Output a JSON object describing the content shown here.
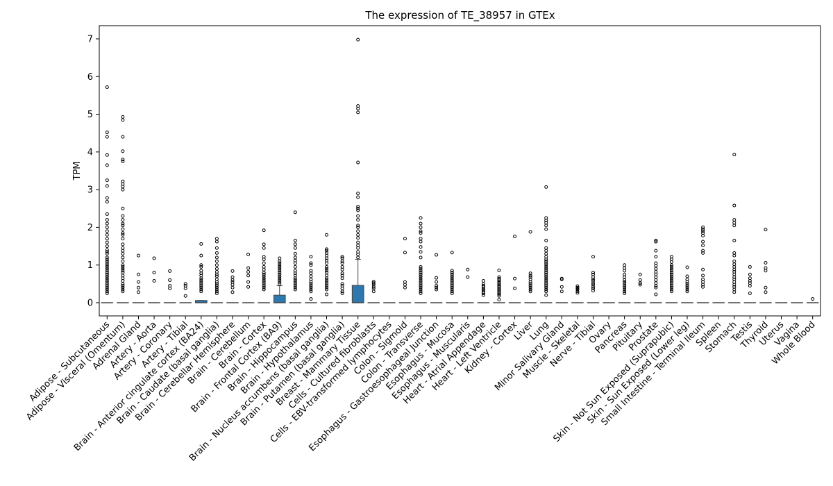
{
  "chart_data": {
    "type": "box",
    "title": "The expression of TE_38957 in GTEx",
    "xlabel": "",
    "ylabel": "TPM",
    "ylim": [
      -0.35,
      7.35
    ],
    "yticks": [
      0,
      1,
      2,
      3,
      4,
      5,
      6,
      7
    ],
    "box_color": "#2e78b0",
    "categories": [
      "Adipose - Subcutaneous",
      "Adipose - Visceral (Omentum)",
      "Adrenal Gland",
      "Artery - Aorta",
      "Artery - Coronary",
      "Artery - Tibial",
      "Brain - Anterior cingulate cortex (BA24)",
      "Brain - Caudate (basal ganglia)",
      "Brain - Cerebellar Hemisphere",
      "Brain - Cerebellum",
      "Brain - Cortex",
      "Brain - Frontal Cortex (BA9)",
      "Brain - Hippocampus",
      "Brain - Hypothalamus",
      "Brain - Nucleus accumbens (basal ganglia)",
      "Brain - Putamen (basal ganglia)",
      "Breast - Mammary Tissue",
      "Cells - Cultured fibroblasts",
      "Cells - EBV-transformed lymphocytes",
      "Colon - Sigmoid",
      "Colon - Transverse",
      "Esophagus - Gastroesophageal Junction",
      "Esophagus - Mucosa",
      "Esophagus - Muscularis",
      "Heart - Atrial Appendage",
      "Heart - Left Ventricle",
      "Kidney - Cortex",
      "Liver",
      "Lung",
      "Minor Salivary Gland",
      "Muscle - Skeletal",
      "Nerve - Tibial",
      "Ovary",
      "Pancreas",
      "Pituitary",
      "Prostate",
      "Skin - Not Sun Exposed (Suprapubic)",
      "Skin - Sun Exposed (Lower leg)",
      "Small Intestine - Terminal Ileum",
      "Spleen",
      "Stomach",
      "Testis",
      "Thyroid",
      "Uterus",
      "Vagina",
      "Whole Blood"
    ],
    "boxes": [
      {
        "q1": 0,
        "median": 0,
        "q3": 0,
        "whisker_low": 0,
        "whisker_high": 0
      },
      {
        "q1": 0,
        "median": 0,
        "q3": 0,
        "whisker_low": 0,
        "whisker_high": 0
      },
      {
        "q1": 0,
        "median": 0,
        "q3": 0,
        "whisker_low": 0,
        "whisker_high": 0
      },
      {
        "q1": 0,
        "median": 0,
        "q3": 0,
        "whisker_low": 0,
        "whisker_high": 0
      },
      {
        "q1": 0,
        "median": 0,
        "q3": 0,
        "whisker_low": 0,
        "whisker_high": 0
      },
      {
        "q1": 0,
        "median": 0,
        "q3": 0,
        "whisker_low": 0,
        "whisker_high": 0
      },
      {
        "q1": 0,
        "median": 0,
        "q3": 0.06,
        "whisker_low": 0,
        "whisker_high": 0.06
      },
      {
        "q1": 0,
        "median": 0,
        "q3": 0,
        "whisker_low": 0,
        "whisker_high": 0
      },
      {
        "q1": 0,
        "median": 0,
        "q3": 0,
        "whisker_low": 0,
        "whisker_high": 0
      },
      {
        "q1": 0,
        "median": 0,
        "q3": 0,
        "whisker_low": 0,
        "whisker_high": 0
      },
      {
        "q1": 0,
        "median": 0,
        "q3": 0,
        "whisker_low": 0,
        "whisker_high": 0
      },
      {
        "q1": 0,
        "median": 0,
        "q3": 0.2,
        "whisker_low": 0,
        "whisker_high": 0.45
      },
      {
        "q1": 0,
        "median": 0,
        "q3": 0,
        "whisker_low": 0,
        "whisker_high": 0
      },
      {
        "q1": 0,
        "median": 0,
        "q3": 0,
        "whisker_low": 0,
        "whisker_high": 0
      },
      {
        "q1": 0,
        "median": 0,
        "q3": 0,
        "whisker_low": 0,
        "whisker_high": 0
      },
      {
        "q1": 0,
        "median": 0,
        "q3": 0,
        "whisker_low": 0,
        "whisker_high": 0
      },
      {
        "q1": 0,
        "median": 0,
        "q3": 0.46,
        "whisker_low": 0,
        "whisker_high": 1.15
      },
      {
        "q1": 0,
        "median": 0,
        "q3": 0,
        "whisker_low": 0,
        "whisker_high": 0
      },
      {
        "q1": 0,
        "median": 0,
        "q3": 0,
        "whisker_low": 0,
        "whisker_high": 0
      },
      {
        "q1": 0,
        "median": 0,
        "q3": 0,
        "whisker_low": 0,
        "whisker_high": 0
      },
      {
        "q1": 0,
        "median": 0,
        "q3": 0,
        "whisker_low": 0,
        "whisker_high": 0
      },
      {
        "q1": 0,
        "median": 0,
        "q3": 0,
        "whisker_low": 0,
        "whisker_high": 0
      },
      {
        "q1": 0,
        "median": 0,
        "q3": 0,
        "whisker_low": 0,
        "whisker_high": 0
      },
      {
        "q1": 0,
        "median": 0,
        "q3": 0,
        "whisker_low": 0,
        "whisker_high": 0
      },
      {
        "q1": 0,
        "median": 0,
        "q3": 0,
        "whisker_low": 0,
        "whisker_high": 0
      },
      {
        "q1": 0,
        "median": 0,
        "q3": 0,
        "whisker_low": 0,
        "whisker_high": 0
      },
      {
        "q1": 0,
        "median": 0,
        "q3": 0,
        "whisker_low": 0,
        "whisker_high": 0
      },
      {
        "q1": 0,
        "median": 0,
        "q3": 0,
        "whisker_low": 0,
        "whisker_high": 0
      },
      {
        "q1": 0,
        "median": 0,
        "q3": 0,
        "whisker_low": 0,
        "whisker_high": 0
      },
      {
        "q1": 0,
        "median": 0,
        "q3": 0,
        "whisker_low": 0,
        "whisker_high": 0
      },
      {
        "q1": 0,
        "median": 0,
        "q3": 0,
        "whisker_low": 0,
        "whisker_high": 0
      },
      {
        "q1": 0,
        "median": 0,
        "q3": 0,
        "whisker_low": 0,
        "whisker_high": 0
      },
      {
        "q1": 0,
        "median": 0,
        "q3": 0,
        "whisker_low": 0,
        "whisker_high": 0
      },
      {
        "q1": 0,
        "median": 0,
        "q3": 0,
        "whisker_low": 0,
        "whisker_high": 0
      },
      {
        "q1": 0,
        "median": 0,
        "q3": 0,
        "whisker_low": 0,
        "whisker_high": 0
      },
      {
        "q1": 0,
        "median": 0,
        "q3": 0,
        "whisker_low": 0,
        "whisker_high": 0
      },
      {
        "q1": 0,
        "median": 0,
        "q3": 0,
        "whisker_low": 0,
        "whisker_high": 0
      },
      {
        "q1": 0,
        "median": 0,
        "q3": 0,
        "whisker_low": 0,
        "whisker_high": 0
      },
      {
        "q1": 0,
        "median": 0,
        "q3": 0,
        "whisker_low": 0,
        "whisker_high": 0
      },
      {
        "q1": 0,
        "median": 0,
        "q3": 0,
        "whisker_low": 0,
        "whisker_high": 0
      },
      {
        "q1": 0,
        "median": 0,
        "q3": 0,
        "whisker_low": 0,
        "whisker_high": 0
      },
      {
        "q1": 0,
        "median": 0,
        "q3": 0,
        "whisker_low": 0,
        "whisker_high": 0
      },
      {
        "q1": 0,
        "median": 0,
        "q3": 0,
        "whisker_low": 0,
        "whisker_high": 0
      },
      {
        "q1": 0,
        "median": 0,
        "q3": 0,
        "whisker_low": 0,
        "whisker_high": 0
      },
      {
        "q1": 0,
        "median": 0,
        "q3": 0,
        "whisker_low": 0,
        "whisker_high": 0
      },
      {
        "q1": 0,
        "median": 0,
        "q3": 0,
        "whisker_low": 0,
        "whisker_high": 0
      }
    ],
    "outliers": [
      [
        5.72,
        4.52,
        4.4,
        3.92,
        3.65,
        3.25,
        3.1,
        2.78,
        2.68,
        2.35,
        2.2,
        2.1,
        2.0,
        1.9,
        1.8,
        1.7,
        1.6,
        1.5,
        1.4,
        1.35,
        1.3,
        1.2,
        1.15,
        1.1,
        1.05,
        1.0,
        0.95,
        0.9,
        0.85,
        0.8,
        0.75,
        0.7,
        0.65,
        0.6,
        0.55,
        0.5,
        0.45,
        0.4,
        0.35,
        0.3,
        0.25
      ],
      [
        4.93,
        4.85,
        4.4,
        4.02,
        3.8,
        3.75,
        3.22,
        3.15,
        3.08,
        3.0,
        2.5,
        2.3,
        2.2,
        2.1,
        2.05,
        1.95,
        1.85,
        1.8,
        1.7,
        1.55,
        1.45,
        1.38,
        1.3,
        1.2,
        1.1,
        1.0,
        0.95,
        0.9,
        0.85,
        0.8,
        0.72,
        0.65,
        0.58,
        0.5,
        0.45,
        0.4,
        0.35,
        0.3
      ],
      [
        1.25,
        0.75,
        0.55,
        0.4,
        0.28
      ],
      [
        1.18,
        0.8,
        0.58
      ],
      [
        0.84,
        0.6,
        0.45,
        0.38
      ],
      [
        0.5,
        0.45,
        0.38,
        0.18
      ],
      [
        1.56,
        1.25,
        1.0,
        0.95,
        0.85,
        0.78,
        0.72,
        0.65,
        0.6,
        0.55,
        0.5,
        0.45,
        0.4,
        0.35,
        0.3
      ],
      [
        1.7,
        1.62,
        1.45,
        1.32,
        1.2,
        1.1,
        1.0,
        0.9,
        0.82,
        0.75,
        0.7,
        0.62,
        0.55,
        0.5,
        0.45,
        0.4,
        0.35,
        0.3,
        0.25
      ],
      [
        0.84,
        0.68,
        0.6,
        0.55,
        0.48,
        0.4,
        0.28
      ],
      [
        1.28,
        0.92,
        0.82,
        0.72,
        0.55,
        0.42
      ],
      [
        1.92,
        1.55,
        1.45,
        1.22,
        1.15,
        1.05,
        0.95,
        0.88,
        0.8,
        0.75,
        0.7,
        0.65,
        0.6,
        0.55,
        0.5,
        0.45,
        0.4,
        0.35
      ],
      [
        1.18,
        1.1,
        1.05,
        1.0,
        0.95,
        0.9,
        0.85,
        0.8,
        0.75,
        0.7,
        0.65,
        0.6,
        0.55,
        0.5
      ],
      [
        2.4,
        1.65,
        1.55,
        1.45,
        1.3,
        1.2,
        1.12,
        1.05,
        0.95,
        0.85,
        0.78,
        0.72,
        0.65,
        0.6,
        0.55,
        0.5,
        0.45,
        0.4,
        0.35
      ],
      [
        1.22,
        1.05,
        1.0,
        0.85,
        0.78,
        0.7,
        0.62,
        0.55,
        0.5,
        0.45,
        0.4,
        0.35,
        0.3,
        0.1
      ],
      [
        1.8,
        1.42,
        1.38,
        1.32,
        1.25,
        1.18,
        1.12,
        1.05,
        0.95,
        0.9,
        0.85,
        0.8,
        0.72,
        0.65,
        0.6,
        0.55,
        0.5,
        0.45,
        0.4,
        0.35,
        0.22
      ],
      [
        1.22,
        1.18,
        1.1,
        1.05,
        0.95,
        0.88,
        0.78,
        0.72,
        0.65,
        0.5,
        0.45,
        0.38,
        0.3,
        0.25
      ],
      [
        6.98,
        5.22,
        5.15,
        5.05,
        3.72,
        2.9,
        2.8,
        2.55,
        2.5,
        2.45,
        2.3,
        2.2,
        2.05,
        2.0,
        1.9,
        1.8,
        1.72,
        1.6,
        1.52,
        1.45,
        1.35,
        1.28,
        1.2
      ],
      [
        0.56,
        0.52,
        0.48,
        0.42,
        0.38,
        0.3
      ],
      [],
      [
        1.7,
        1.33,
        0.55,
        0.48,
        0.4
      ],
      [
        2.25,
        2.1,
        2.0,
        1.9,
        1.85,
        1.7,
        1.62,
        1.48,
        1.35,
        1.2,
        0.95,
        0.9,
        0.85,
        0.8,
        0.75,
        0.7,
        0.65,
        0.6,
        0.55,
        0.5,
        0.45,
        0.4,
        0.35,
        0.3,
        0.25
      ],
      [
        1.27,
        0.66,
        0.55,
        0.45,
        0.4,
        0.35
      ],
      [
        1.33,
        0.85,
        0.8,
        0.75,
        0.7,
        0.65,
        0.6,
        0.55,
        0.5,
        0.45,
        0.4,
        0.35,
        0.3,
        0.25
      ],
      [
        0.88,
        0.68
      ],
      [
        0.58,
        0.5,
        0.45,
        0.42,
        0.38,
        0.35,
        0.32,
        0.28,
        0.25,
        0.2
      ],
      [
        0.86,
        0.68,
        0.64,
        0.6,
        0.56,
        0.52,
        0.48,
        0.45,
        0.42,
        0.38,
        0.35,
        0.32,
        0.28,
        0.25,
        0.22,
        0.18,
        0.08
      ],
      [
        1.76,
        0.64,
        0.38
      ],
      [
        1.88,
        0.78,
        0.72,
        0.68,
        0.62,
        0.55,
        0.5,
        0.45,
        0.4,
        0.35,
        0.3
      ],
      [
        3.07,
        2.25,
        2.18,
        2.12,
        2.05,
        1.95,
        1.65,
        1.45,
        1.38,
        1.3,
        1.22,
        1.15,
        1.1,
        1.05,
        1.0,
        0.95,
        0.9,
        0.85,
        0.8,
        0.75,
        0.7,
        0.65,
        0.6,
        0.55,
        0.5,
        0.45,
        0.4,
        0.35,
        0.3,
        0.2
      ],
      [
        0.64,
        0.62,
        0.42,
        0.3
      ],
      [
        0.44,
        0.4,
        0.38,
        0.35,
        0.3,
        0.26
      ],
      [
        1.22,
        0.8,
        0.75,
        0.68,
        0.62,
        0.58,
        0.52,
        0.48,
        0.42,
        0.38,
        0.32
      ],
      [],
      [
        1.0,
        0.92,
        0.85,
        0.75,
        0.68,
        0.6,
        0.55,
        0.5,
        0.45,
        0.4,
        0.35,
        0.3,
        0.25
      ],
      [
        0.75,
        0.6,
        0.52,
        0.48
      ],
      [
        1.65,
        1.62,
        1.38,
        1.22,
        1.05,
        0.98,
        0.9,
        0.82,
        0.75,
        0.68,
        0.6,
        0.52,
        0.45,
        0.4,
        0.22
      ],
      [
        1.22,
        1.15,
        1.08,
        1.0,
        0.95,
        0.9,
        0.85,
        0.8,
        0.75,
        0.7,
        0.65,
        0.6,
        0.55,
        0.5,
        0.45,
        0.4,
        0.35,
        0.3
      ],
      [
        0.94,
        0.7,
        0.62,
        0.55,
        0.5,
        0.45,
        0.4,
        0.35,
        0.3
      ],
      [
        2.0,
        1.95,
        1.9,
        1.85,
        1.78,
        1.62,
        1.52,
        1.38,
        1.32,
        0.88,
        0.72,
        0.62,
        0.55,
        0.48,
        0.42
      ],
      [],
      [
        3.93,
        2.58,
        2.2,
        2.12,
        2.05,
        1.65,
        1.32,
        1.25,
        1.1,
        1.02,
        0.95,
        0.88,
        0.82,
        0.75,
        0.68,
        0.62,
        0.55,
        0.48,
        0.42,
        0.35,
        0.28
      ],
      [
        0.95,
        0.75,
        0.65,
        0.58,
        0.52,
        0.45,
        0.25
      ],
      [
        1.94,
        1.06,
        0.92,
        0.85,
        0.4,
        0.28
      ],
      [],
      [],
      [
        0.1
      ]
    ]
  }
}
